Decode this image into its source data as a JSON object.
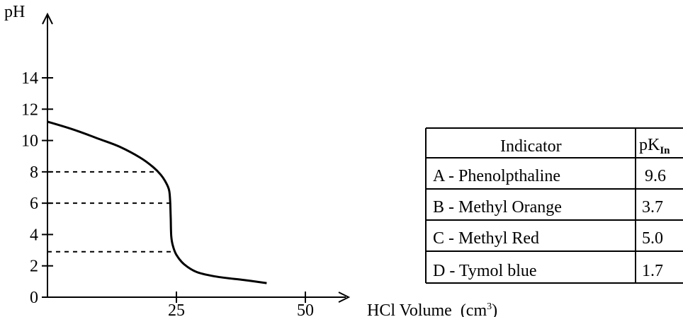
{
  "chart_data": {
    "type": "line",
    "title": "",
    "ylabel": "pH",
    "xlabel": "HCl Volume",
    "xlabel_unit": "(cm",
    "xlabel_unit_sup": "3",
    "xlabel_unit_close": ")",
    "xlim": [
      0,
      50
    ],
    "ylim": [
      0,
      14
    ],
    "y_ticks": [
      "0",
      "2",
      "4",
      "6",
      "8",
      "10",
      "12",
      "14"
    ],
    "x_ticks": [
      {
        "value": 25,
        "label": "25"
      },
      {
        "value": 50,
        "label": "50"
      }
    ],
    "grid": false,
    "series": [
      {
        "values": [
          {
            "x": 0,
            "y": 11.2
          },
          {
            "x": 5,
            "y": 10.7
          },
          {
            "x": 10,
            "y": 10.1
          },
          {
            "x": 14,
            "y": 9.6
          },
          {
            "x": 18,
            "y": 8.9
          },
          {
            "x": 20.5,
            "y": 8.3
          },
          {
            "x": 22,
            "y": 7.8
          },
          {
            "x": 23,
            "y": 7.3
          },
          {
            "x": 23.6,
            "y": 6.8
          },
          {
            "x": 23.8,
            "y": 6.0
          },
          {
            "x": 23.9,
            "y": 5.0
          },
          {
            "x": 24.0,
            "y": 3.9
          },
          {
            "x": 24.3,
            "y": 3.3
          },
          {
            "x": 25,
            "y": 2.7
          },
          {
            "x": 26.5,
            "y": 2.1
          },
          {
            "x": 29,
            "y": 1.6
          },
          {
            "x": 33,
            "y": 1.3
          },
          {
            "x": 38,
            "y": 1.1
          },
          {
            "x": 42.5,
            "y": 0.9
          }
        ]
      }
    ],
    "reference_lines": [
      {
        "y": 8.0,
        "x_end": 21.0
      },
      {
        "y": 6.0,
        "x_end": 23.8
      },
      {
        "y": 2.9,
        "x_end": 24.6
      }
    ]
  },
  "table": {
    "header": {
      "indicator": "Indicator",
      "pk_main": "pK",
      "pk_sub": "In"
    },
    "rows": [
      {
        "indicator": "A -  Phenolpthaline",
        "pk": "9.6"
      },
      {
        "indicator": "B - Methyl Orange",
        "pk": "3.7"
      },
      {
        "indicator": "C - Methyl Red",
        "pk": "5.0"
      },
      {
        "indicator": "D - Tymol blue",
        "pk": "1.7"
      }
    ]
  }
}
